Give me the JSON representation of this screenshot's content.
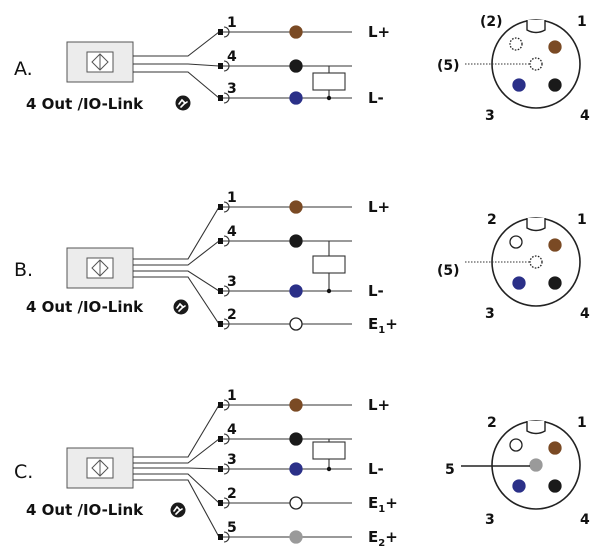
{
  "colors": {
    "brown": "#7a4a24",
    "black": "#1a1a1a",
    "blue": "#2b3088",
    "white": "#ffffff",
    "grey": "#9a9a9a",
    "sensor_fill": "#ececec",
    "line": "#333333"
  },
  "sections": [
    {
      "label": "A.",
      "device_label": "4 Out /IO-Link",
      "device_icon": "io-link-icon",
      "wires": [
        {
          "pin": "1",
          "color": "brown",
          "signal": "L+",
          "subscript": ""
        },
        {
          "pin": "4",
          "color": "black",
          "signal": "",
          "subscript": ""
        },
        {
          "pin": "3",
          "color": "blue",
          "signal": "L-",
          "subscript": ""
        }
      ],
      "load_between": [
        "4",
        "3"
      ],
      "connector": {
        "labels": [
          {
            "text": "(2)"
          },
          {
            "text": "1"
          },
          {
            "text": "(5)"
          },
          {
            "text": "3"
          },
          {
            "text": "4"
          }
        ],
        "dots": [
          {
            "pin": "2",
            "color": "white",
            "style": "dashed"
          },
          {
            "pin": "1",
            "color": "brown",
            "style": "solid"
          },
          {
            "pin": "5",
            "color": "white",
            "style": "dashed"
          },
          {
            "pin": "3",
            "color": "blue",
            "style": "solid"
          },
          {
            "pin": "4",
            "color": "black",
            "style": "solid"
          }
        ]
      }
    },
    {
      "label": "B.",
      "device_label": "4 Out /IO-Link",
      "device_icon": "io-link-icon",
      "wires": [
        {
          "pin": "1",
          "color": "brown",
          "signal": "L+",
          "subscript": ""
        },
        {
          "pin": "4",
          "color": "black",
          "signal": "",
          "subscript": ""
        },
        {
          "pin": "3",
          "color": "blue",
          "signal": "L-",
          "subscript": ""
        },
        {
          "pin": "2",
          "color": "white",
          "signal": "E",
          "subscript": "1",
          "suffix": "+"
        }
      ],
      "load_between": [
        "4",
        "3"
      ],
      "connector": {
        "labels": [
          {
            "text": "2"
          },
          {
            "text": "1"
          },
          {
            "text": "(5)"
          },
          {
            "text": "3"
          },
          {
            "text": "4"
          }
        ],
        "dots": [
          {
            "pin": "2",
            "color": "white",
            "style": "solid"
          },
          {
            "pin": "1",
            "color": "brown",
            "style": "solid"
          },
          {
            "pin": "5",
            "color": "white",
            "style": "dashed"
          },
          {
            "pin": "3",
            "color": "blue",
            "style": "solid"
          },
          {
            "pin": "4",
            "color": "black",
            "style": "solid"
          }
        ]
      }
    },
    {
      "label": "C.",
      "device_label": "4 Out /IO-Link",
      "device_icon": "io-link-icon",
      "wires": [
        {
          "pin": "1",
          "color": "brown",
          "signal": "L+",
          "subscript": ""
        },
        {
          "pin": "4",
          "color": "black",
          "signal": "",
          "subscript": ""
        },
        {
          "pin": "3",
          "color": "blue",
          "signal": "L-",
          "subscript": ""
        },
        {
          "pin": "2",
          "color": "white",
          "signal": "E",
          "subscript": "1",
          "suffix": "+"
        },
        {
          "pin": "5",
          "color": "grey",
          "signal": "E",
          "subscript": "2",
          "suffix": "+"
        }
      ],
      "load_between": [
        "4",
        "3"
      ],
      "connector": {
        "labels": [
          {
            "text": "2"
          },
          {
            "text": "1"
          },
          {
            "text": "5"
          },
          {
            "text": "3"
          },
          {
            "text": "4"
          }
        ],
        "dots": [
          {
            "pin": "2",
            "color": "white",
            "style": "solid"
          },
          {
            "pin": "1",
            "color": "brown",
            "style": "solid"
          },
          {
            "pin": "5",
            "color": "grey",
            "style": "solid"
          },
          {
            "pin": "3",
            "color": "blue",
            "style": "solid"
          },
          {
            "pin": "4",
            "color": "black",
            "style": "solid"
          }
        ]
      }
    }
  ]
}
